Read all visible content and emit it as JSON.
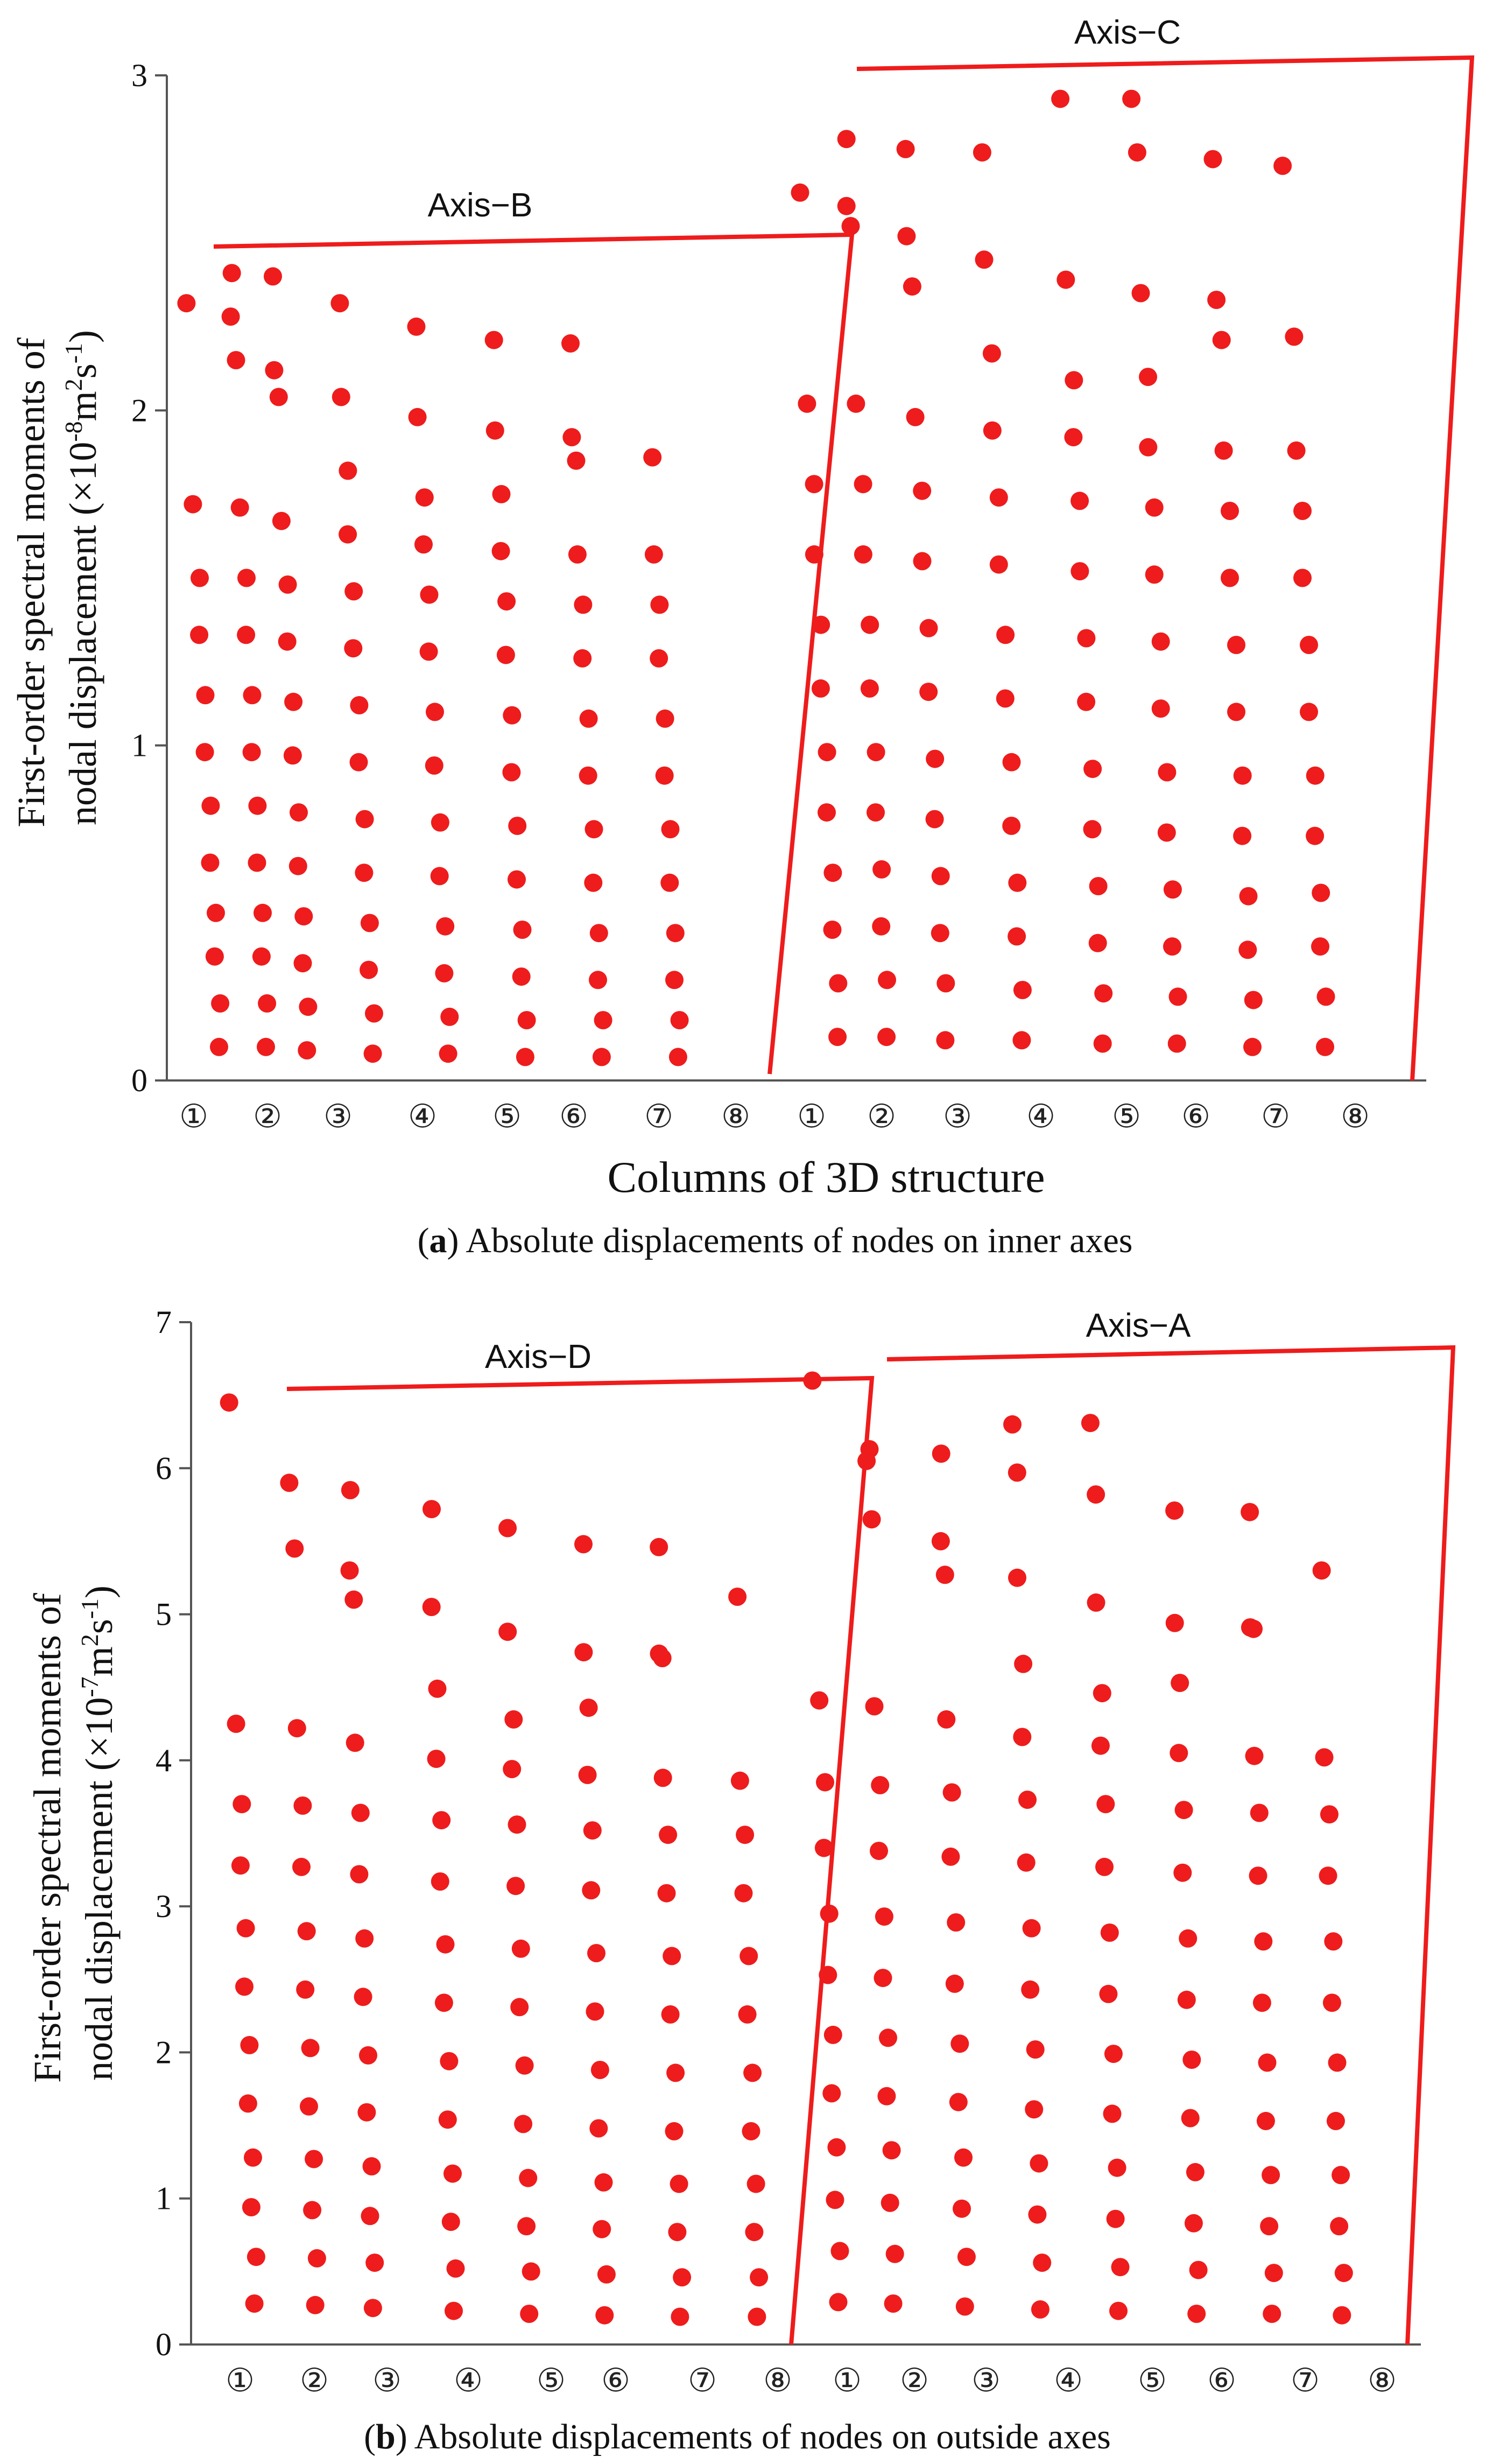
{
  "chart_data": [
    {
      "id": "a",
      "type": "scatter",
      "ylabel_lines": [
        "First-order spectral moments of",
        "nodal displacement (×10",
        "-8",
        "m",
        "2",
        "s",
        "-1",
        ")"
      ],
      "xlabel": "Columns of  3D structure",
      "caption_letter": "a",
      "caption_text": " Absolute displacements of nodes on inner axes",
      "ylim": [
        0,
        3
      ],
      "yticks": [
        "0",
        "1",
        "2",
        "3"
      ],
      "column_labels": [
        "①",
        "②",
        "③",
        "④",
        "⑤",
        "⑥",
        "⑦",
        "⑧",
        "①",
        "②",
        "③",
        "④",
        "⑤",
        "⑥",
        "⑦",
        "⑧"
      ],
      "groups": [
        {
          "name": "Axis−B",
          "columns": [
            {
              "label": "①",
              "values": [
                0.1,
                0.23,
                0.37,
                0.5,
                0.65,
                0.82,
                0.98,
                1.15,
                1.33,
                1.5,
                1.72,
                2.32
              ]
            },
            {
              "label": "②",
              "values": [
                0.1,
                0.23,
                0.37,
                0.5,
                0.65,
                0.82,
                0.98,
                1.15,
                1.33,
                1.5,
                1.71,
                2.15,
                2.28,
                2.41
              ]
            },
            {
              "label": "③",
              "values": [
                0.09,
                0.22,
                0.35,
                0.49,
                0.64,
                0.8,
                0.97,
                1.13,
                1.31,
                1.48,
                1.67,
                2.04,
                2.12,
                2.4
              ]
            },
            {
              "label": "④",
              "values": [
                0.08,
                0.2,
                0.33,
                0.47,
                0.62,
                0.78,
                0.95,
                1.12,
                1.29,
                1.46,
                1.63,
                1.82,
                2.04,
                2.32
              ]
            },
            {
              "label": "⑤",
              "values": [
                0.08,
                0.19,
                0.32,
                0.46,
                0.61,
                0.77,
                0.94,
                1.1,
                1.28,
                1.45,
                1.6,
                1.74,
                1.98,
                2.25
              ]
            },
            {
              "label": "⑥",
              "values": [
                0.07,
                0.18,
                0.31,
                0.45,
                0.6,
                0.76,
                0.92,
                1.09,
                1.27,
                1.43,
                1.58,
                1.75,
                1.94,
                2.21
              ]
            },
            {
              "label": "⑦",
              "values": [
                0.07,
                0.18,
                0.3,
                0.44,
                0.59,
                0.75,
                0.91,
                1.08,
                1.26,
                1.42,
                1.57,
                1.85,
                1.92,
                2.2
              ]
            },
            {
              "label": "⑧",
              "values": [
                0.07,
                0.18,
                0.3,
                0.44,
                0.59,
                0.75,
                0.91,
                1.08,
                1.26,
                1.42,
                1.57,
                1.86
              ]
            }
          ]
        },
        {
          "name": "Axis−C",
          "columns": [
            {
              "label": "①",
              "values": [
                0.13,
                0.29,
                0.45,
                0.62,
                0.8,
                0.98,
                1.17,
                1.36,
                1.57,
                1.78,
                2.02,
                2.65
              ]
            },
            {
              "label": "②",
              "values": [
                0.13,
                0.3,
                0.46,
                0.63,
                0.8,
                0.98,
                1.17,
                1.36,
                1.57,
                1.78,
                2.02,
                2.55,
                2.61,
                2.81
              ]
            },
            {
              "label": "③",
              "values": [
                0.12,
                0.29,
                0.44,
                0.61,
                0.78,
                0.96,
                1.16,
                1.35,
                1.55,
                1.76,
                1.98,
                2.37,
                2.52,
                2.78
              ]
            },
            {
              "label": "④",
              "values": [
                0.12,
                0.27,
                0.43,
                0.59,
                0.76,
                0.95,
                1.14,
                1.33,
                1.54,
                1.74,
                1.94,
                2.17,
                2.45,
                2.77
              ]
            },
            {
              "label": "⑤",
              "values": [
                0.11,
                0.26,
                0.41,
                0.58,
                0.75,
                0.93,
                1.13,
                1.32,
                1.52,
                1.73,
                1.92,
                2.09,
                2.39,
                2.93
              ]
            },
            {
              "label": "⑥",
              "values": [
                0.11,
                0.25,
                0.4,
                0.57,
                0.74,
                0.92,
                1.11,
                1.31,
                1.51,
                1.71,
                1.89,
                2.1,
                2.35,
                2.77,
                2.93
              ]
            },
            {
              "label": "⑦",
              "values": [
                0.1,
                0.24,
                0.39,
                0.55,
                0.73,
                0.91,
                1.1,
                1.3,
                1.5,
                1.7,
                1.88,
                2.21,
                2.33,
                2.75
              ]
            },
            {
              "label": "⑧",
              "values": [
                0.1,
                0.25,
                0.4,
                0.56,
                0.73,
                0.91,
                1.1,
                1.3,
                1.5,
                1.7,
                1.88,
                2.22,
                2.73
              ]
            }
          ]
        }
      ]
    },
    {
      "id": "b",
      "type": "scatter",
      "ylabel_lines": [
        "First-order spectral moments of",
        "nodal displacement (×10",
        "-7",
        "m",
        "2",
        "s",
        "-1",
        ")"
      ],
      "caption_letter": "b",
      "caption_text": " Absolute displacements of nodes on outside axes",
      "ylim": [
        0,
        7
      ],
      "yticks": [
        "0",
        "1",
        "2",
        "3",
        "4",
        "5",
        "6",
        "7"
      ],
      "column_labels": [
        "①",
        "②",
        "③",
        "④",
        "⑤",
        "⑥",
        "⑦",
        "⑧",
        "①",
        "②",
        "③",
        "④",
        "⑤",
        "⑥",
        "⑦",
        "⑧"
      ],
      "groups": [
        {
          "name": "Axis−D",
          "columns": [
            {
              "label": "①",
              "values": [
                0.28,
                0.6,
                0.94,
                1.28,
                1.65,
                2.05,
                2.45,
                2.85,
                3.28,
                3.7,
                4.25,
                6.45
              ]
            },
            {
              "label": "②",
              "values": [
                0.27,
                0.59,
                0.92,
                1.27,
                1.63,
                2.03,
                2.43,
                2.83,
                3.27,
                3.69,
                4.22,
                5.45,
                5.9
              ]
            },
            {
              "label": "③",
              "values": [
                0.25,
                0.56,
                0.88,
                1.22,
                1.59,
                1.98,
                2.38,
                2.78,
                3.22,
                3.64,
                4.12,
                5.1,
                5.3,
                5.85
              ]
            },
            {
              "label": "④",
              "values": [
                0.23,
                0.52,
                0.84,
                1.17,
                1.54,
                1.94,
                2.34,
                2.74,
                3.17,
                3.59,
                4.01,
                4.49,
                5.05,
                5.72
              ]
            },
            {
              "label": "⑤",
              "values": [
                0.21,
                0.5,
                0.81,
                1.14,
                1.51,
                1.91,
                2.31,
                2.71,
                3.14,
                3.56,
                3.94,
                4.28,
                4.88,
                5.59
              ]
            },
            {
              "label": "⑥",
              "values": [
                0.2,
                0.48,
                0.79,
                1.11,
                1.48,
                1.88,
                2.28,
                2.68,
                3.11,
                3.52,
                3.9,
                4.36,
                4.74,
                5.48
              ]
            },
            {
              "label": "⑦",
              "values": [
                0.19,
                0.46,
                0.77,
                1.1,
                1.46,
                1.86,
                2.26,
                2.66,
                3.09,
                3.49,
                3.88,
                4.7,
                4.73,
                5.46
              ]
            },
            {
              "label": "⑧",
              "values": [
                0.19,
                0.46,
                0.77,
                1.1,
                1.46,
                1.86,
                2.26,
                2.66,
                3.09,
                3.49,
                3.86,
                5.12
              ]
            }
          ]
        },
        {
          "name": "Axis−A",
          "columns": [
            {
              "label": "①",
              "values": [
                0.29,
                0.64,
                0.99,
                1.35,
                1.72,
                2.12,
                2.53,
                2.95,
                3.4,
                3.85,
                4.41,
                6.6
              ]
            },
            {
              "label": "②",
              "values": [
                0.28,
                0.62,
                0.97,
                1.33,
                1.7,
                2.1,
                2.51,
                2.93,
                3.38,
                3.83,
                4.37,
                5.65,
                6.05,
                6.13
              ]
            },
            {
              "label": "③",
              "values": [
                0.26,
                0.6,
                0.93,
                1.28,
                1.66,
                2.06,
                2.47,
                2.89,
                3.34,
                3.78,
                4.28,
                5.27,
                5.5,
                6.1
              ]
            },
            {
              "label": "④",
              "values": [
                0.24,
                0.56,
                0.89,
                1.24,
                1.61,
                2.02,
                2.43,
                2.85,
                3.3,
                3.73,
                4.16,
                4.66,
                5.25,
                5.97,
                6.3
              ]
            },
            {
              "label": "⑤",
              "values": [
                0.23,
                0.53,
                0.86,
                1.21,
                1.58,
                1.99,
                2.4,
                2.82,
                3.27,
                3.7,
                4.1,
                4.46,
                5.08,
                5.82,
                6.31
              ]
            },
            {
              "label": "⑥",
              "values": [
                0.21,
                0.51,
                0.83,
                1.18,
                1.55,
                1.95,
                2.36,
                2.78,
                3.23,
                3.66,
                4.05,
                4.53,
                4.94,
                5.71
              ]
            },
            {
              "label": "⑦",
              "values": [
                0.21,
                0.49,
                0.81,
                1.16,
                1.53,
                1.93,
                2.34,
                2.76,
                3.21,
                3.64,
                4.03,
                4.9,
                4.91,
                5.7
              ]
            },
            {
              "label": "⑧",
              "values": [
                0.2,
                0.49,
                0.81,
                1.16,
                1.53,
                1.93,
                2.34,
                2.76,
                3.21,
                3.63,
                4.02,
                5.3
              ]
            }
          ]
        }
      ]
    }
  ],
  "colors": {
    "series": "#ee1c1c",
    "axis": "#555555",
    "text": "#111111"
  }
}
